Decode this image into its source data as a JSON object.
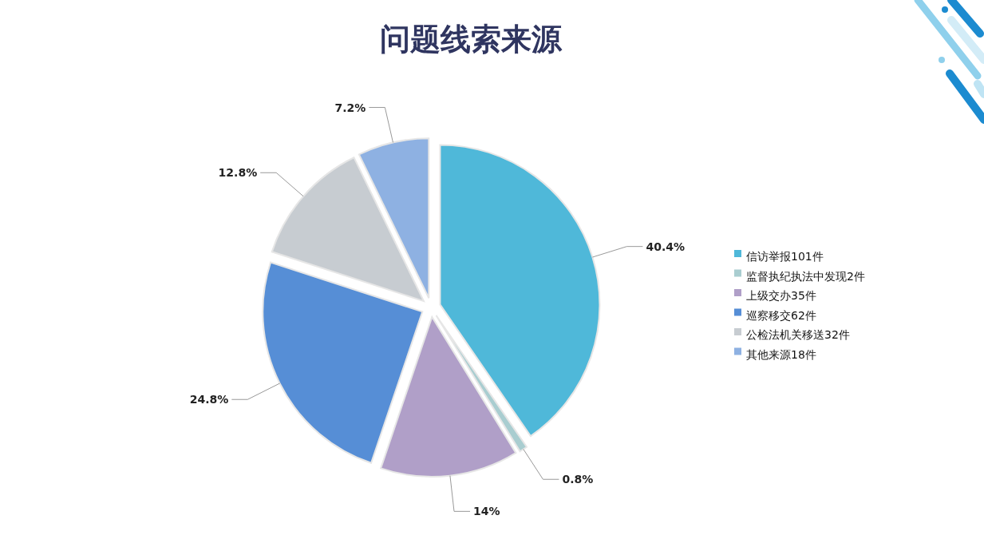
{
  "chart_data": {
    "type": "pie",
    "title": "问题线索来源",
    "categories": [
      "信访举报101件",
      "监督执纪执法中发现2件",
      "上级交办35件",
      "巡察移交62件",
      "公检法机关移送32件",
      "其他来源18件"
    ],
    "values": [
      40.4,
      0.8,
      14,
      24.8,
      12.8,
      7.2
    ],
    "value_labels": [
      "40.4%",
      "0.8%",
      "14%",
      "24.8%",
      "12.8%",
      "7.2%"
    ],
    "colors": [
      "#4fb8d9",
      "#a9cdd0",
      "#b09fc8",
      "#568ed6",
      "#c7ccd1",
      "#8eb1e2"
    ],
    "legend": "right"
  }
}
